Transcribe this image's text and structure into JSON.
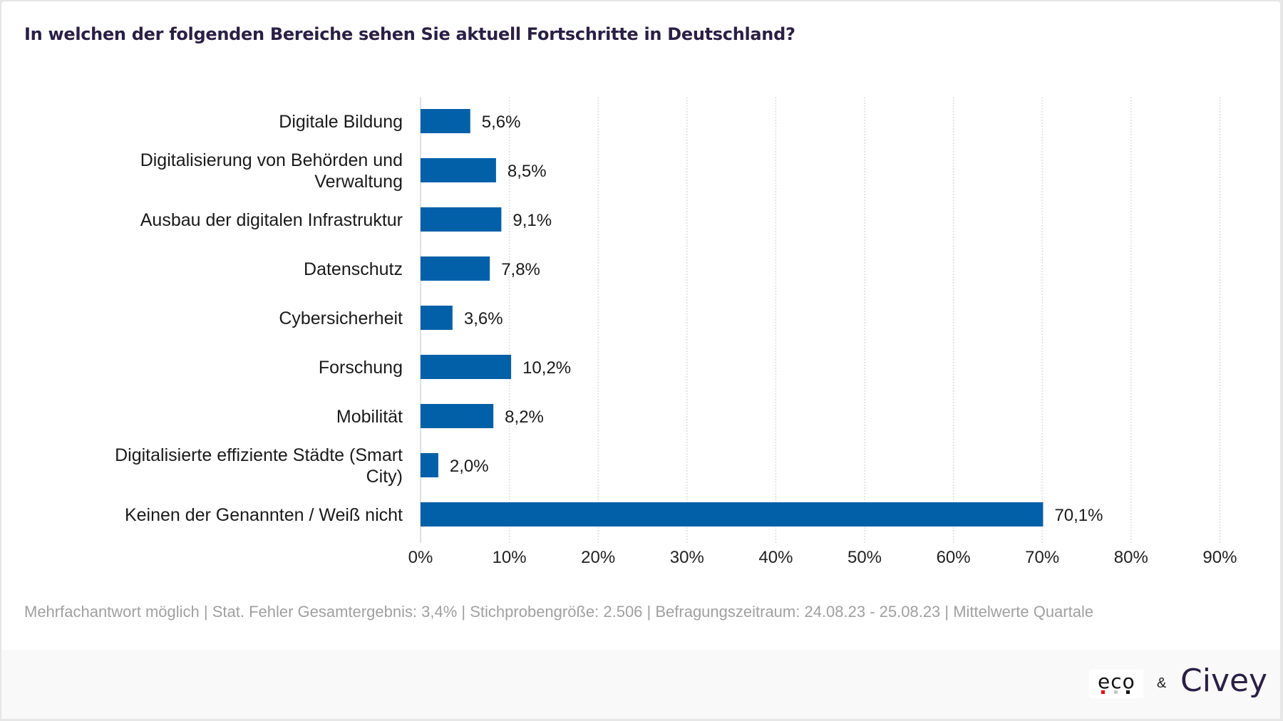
{
  "title": "In welchen der folgenden Bereiche sehen Sie aktuell Fortschritte in Deutschland?",
  "footer_note": "Mehrfachantwort möglich | Stat. Fehler Gesamtergebnis: 3,4% | Stichprobengröße: 2.506 | Befragungszeitraum: 24.08.23 - 25.08.23 | Mittelwerte Quartale",
  "logos": {
    "eco": "eco",
    "ampersand": "&",
    "civey": "Civey"
  },
  "colors": {
    "bar": "#0260a8",
    "title": "#2a1f44",
    "eco_dots": [
      "#e30613",
      "#c8c8c8",
      "#111111"
    ]
  },
  "chart_data": {
    "type": "bar",
    "orientation": "horizontal",
    "title": "In welchen der folgenden Bereiche sehen Sie aktuell Fortschritte in Deutschland?",
    "xlabel": "",
    "ylabel": "",
    "categories": [
      [
        "Digitale Bildung"
      ],
      [
        "Digitalisierung von Behörden und",
        "Verwaltung"
      ],
      [
        "Ausbau der digitalen Infrastruktur"
      ],
      [
        "Datenschutz"
      ],
      [
        "Cybersicherheit"
      ],
      [
        "Forschung"
      ],
      [
        "Mobilität"
      ],
      [
        "Digitalisierte effiziente Städte (Smart",
        "City)"
      ],
      [
        "Keinen der Genannten / Weiß nicht"
      ]
    ],
    "values": [
      5.6,
      8.5,
      9.1,
      7.8,
      3.6,
      10.2,
      8.2,
      2.0,
      70.1
    ],
    "value_labels": [
      "5,6%",
      "8,5%",
      "9,1%",
      "7,8%",
      "3,6%",
      "10,2%",
      "8,2%",
      "2,0%",
      "70,1%"
    ],
    "xlim": [
      0,
      90
    ],
    "xticks": [
      0,
      10,
      20,
      30,
      40,
      50,
      60,
      70,
      80,
      90
    ],
    "xtick_labels": [
      "0%",
      "10%",
      "20%",
      "30%",
      "40%",
      "50%",
      "60%",
      "70%",
      "80%",
      "90%"
    ],
    "grid": "vertical dotted",
    "legend": "none"
  }
}
